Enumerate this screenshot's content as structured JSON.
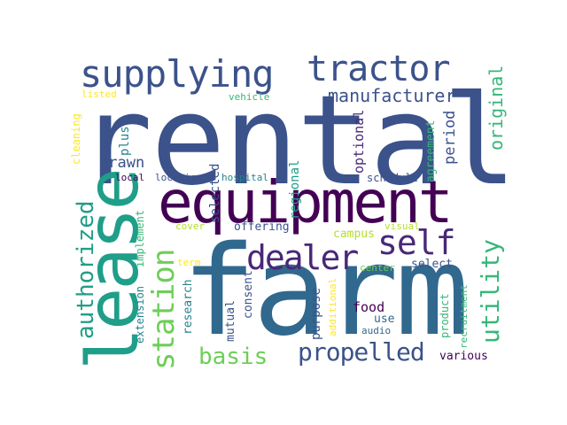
{
  "colors": {
    "c1": "#3b528b",
    "c2": "#440154",
    "c3": "#31688e",
    "c4": "#26828e",
    "c5": "#1f9e89",
    "c6": "#35b779",
    "c7": "#6ece58",
    "c8": "#b5de2b",
    "c9": "#fde725",
    "c10": "#482878"
  },
  "words": {
    "rental": "rental",
    "farm": "farm",
    "equipment": "equipment",
    "lease": "lease",
    "supplying": "supplying",
    "tractor": "tractor",
    "self": "self",
    "dealer": "dealer",
    "station": "station",
    "authorized": "authorized",
    "utility": "utility",
    "propelled": "propelled",
    "basis": "basis",
    "manufacturer": "manufacturer",
    "original": "original",
    "drawn": "drawn",
    "optional": "optional",
    "period": "period",
    "agreement": "agreement",
    "selected": "selected",
    "regional": "regional",
    "offering": "offering",
    "campus": "campus",
    "plus": "plus",
    "cleaning": "cleaning",
    "listed": "listed",
    "vehicle": "vehicle",
    "local": "local",
    "location": "location",
    "hospital": "hospital",
    "schedule": "schedule",
    "implement": "implement",
    "extension": "extension",
    "research": "research",
    "mutual": "mutual",
    "consent": "consent",
    "cover": "cover",
    "visual": "visual",
    "term": "term",
    "center": "center",
    "select": "select",
    "purpose": "purpose",
    "additional": "additional",
    "food": "food",
    "use": "use",
    "audio": "audio",
    "product": "product",
    "recruitment": "recruitment",
    "various": "various"
  }
}
